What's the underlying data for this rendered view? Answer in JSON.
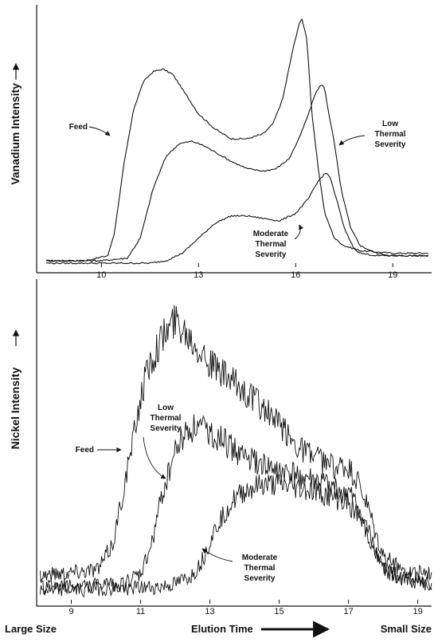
{
  "chart_data": [
    {
      "type": "line",
      "ylabel": "Vanadium Intensity",
      "xlim": [
        8,
        20.2
      ],
      "ylim": [
        0,
        1
      ],
      "xticks": [
        10,
        13,
        16,
        19
      ],
      "grid": false,
      "annotations": [
        {
          "name": "feed",
          "lines": [
            "Feed"
          ]
        },
        {
          "name": "low-thermal-severity",
          "lines": [
            "Low",
            "Thermal",
            "Severity"
          ]
        },
        {
          "name": "moderate-thermal-severity",
          "lines": [
            "Moderate",
            "Thermal",
            "Severity"
          ]
        }
      ],
      "series": [
        {
          "x": [
            8.3,
            9.5,
            10.2,
            10.4,
            10.7,
            11.0,
            11.3,
            11.6,
            11.9,
            12.2,
            12.6,
            13.0,
            13.5,
            14.0,
            14.5,
            15.0,
            15.3,
            15.6,
            15.9,
            16.1,
            16.2,
            16.35,
            16.5,
            16.7,
            16.9,
            17.2,
            17.5,
            18.0,
            19.0,
            20.1
          ],
          "y": [
            0.01,
            0.01,
            0.03,
            0.12,
            0.4,
            0.62,
            0.73,
            0.77,
            0.78,
            0.76,
            0.68,
            0.6,
            0.54,
            0.5,
            0.5,
            0.52,
            0.56,
            0.66,
            0.85,
            0.96,
            0.98,
            0.9,
            0.6,
            0.38,
            0.2,
            0.1,
            0.07,
            0.05,
            0.04,
            0.04
          ]
        },
        {
          "x": [
            8.3,
            10.0,
            10.8,
            11.2,
            11.6,
            12.0,
            12.4,
            12.8,
            13.2,
            13.6,
            14.0,
            14.5,
            15.0,
            15.4,
            15.8,
            16.1,
            16.4,
            16.6,
            16.8,
            16.9,
            17.0,
            17.2,
            17.4,
            17.7,
            18.0,
            18.5,
            19.0,
            20.1
          ],
          "y": [
            0.01,
            0.01,
            0.02,
            0.1,
            0.3,
            0.43,
            0.48,
            0.49,
            0.47,
            0.44,
            0.41,
            0.38,
            0.37,
            0.38,
            0.42,
            0.5,
            0.6,
            0.68,
            0.72,
            0.7,
            0.62,
            0.48,
            0.3,
            0.14,
            0.07,
            0.04,
            0.03,
            0.03
          ]
        },
        {
          "x": [
            8.3,
            11.5,
            12.0,
            12.5,
            13.0,
            13.5,
            14.0,
            14.5,
            15.0,
            15.5,
            16.0,
            16.4,
            16.7,
            16.9,
            17.0,
            17.1,
            17.3,
            17.5,
            17.8,
            18.0,
            18.5,
            19.0,
            20.1
          ],
          "y": [
            0.0,
            0.0,
            0.01,
            0.04,
            0.1,
            0.16,
            0.19,
            0.19,
            0.18,
            0.17,
            0.2,
            0.26,
            0.33,
            0.36,
            0.36,
            0.33,
            0.24,
            0.14,
            0.06,
            0.04,
            0.03,
            0.03,
            0.03
          ]
        }
      ]
    },
    {
      "type": "line",
      "ylabel": "Nickel Intensity",
      "xlim": [
        8,
        19.4
      ],
      "ylim": [
        0,
        1
      ],
      "xticks": [
        9,
        11,
        13,
        15,
        17,
        19
      ],
      "grid": false,
      "annotations": [
        {
          "name": "feed",
          "lines": [
            "Feed"
          ]
        },
        {
          "name": "low-thermal-severity",
          "lines": [
            "Low",
            "Thermal",
            "Severity"
          ]
        },
        {
          "name": "moderate-thermal-severity",
          "lines": [
            "Moderate",
            "Thermal",
            "Severity"
          ]
        }
      ],
      "series": [
        {
          "x": [
            8.1,
            9.0,
            9.8,
            10.2,
            10.5,
            10.8,
            11.0,
            11.2,
            11.5,
            11.8,
            12.0,
            12.2,
            12.5,
            12.8,
            13.0,
            13.3,
            13.6,
            14.0,
            14.5,
            15.0,
            15.5,
            16.0,
            16.5,
            17.0,
            17.3,
            17.6,
            17.8,
            18.0,
            18.5,
            19.4
          ],
          "y": [
            0.08,
            0.09,
            0.1,
            0.18,
            0.35,
            0.52,
            0.65,
            0.74,
            0.82,
            0.87,
            0.9,
            0.88,
            0.84,
            0.8,
            0.76,
            0.73,
            0.7,
            0.67,
            0.62,
            0.56,
            0.5,
            0.46,
            0.43,
            0.42,
            0.37,
            0.28,
            0.2,
            0.14,
            0.1,
            0.08
          ]
        },
        {
          "x": [
            8.1,
            10.5,
            11.0,
            11.3,
            11.6,
            12.0,
            12.3,
            12.6,
            13.0,
            13.5,
            14.0,
            14.5,
            15.0,
            15.5,
            16.0,
            16.5,
            17.0,
            17.3,
            17.6,
            17.8,
            18.0,
            18.5,
            19.4
          ],
          "y": [
            0.04,
            0.05,
            0.08,
            0.17,
            0.33,
            0.48,
            0.54,
            0.56,
            0.54,
            0.5,
            0.46,
            0.43,
            0.41,
            0.4,
            0.38,
            0.36,
            0.34,
            0.29,
            0.21,
            0.15,
            0.1,
            0.07,
            0.05
          ]
        },
        {
          "x": [
            8.1,
            11.5,
            12.0,
            12.5,
            12.8,
            13.0,
            13.3,
            13.6,
            14.0,
            14.5,
            15.0,
            15.5,
            16.0,
            16.5,
            17.0,
            17.3,
            17.6,
            17.8,
            18.0,
            18.5,
            19.4
          ],
          "y": [
            0.03,
            0.04,
            0.05,
            0.08,
            0.13,
            0.19,
            0.26,
            0.31,
            0.35,
            0.37,
            0.37,
            0.36,
            0.35,
            0.33,
            0.31,
            0.27,
            0.2,
            0.15,
            0.1,
            0.07,
            0.05
          ]
        }
      ]
    }
  ],
  "bottom_labels": {
    "left": "Large Size",
    "center": "Elution Time",
    "right": "Small Size"
  }
}
